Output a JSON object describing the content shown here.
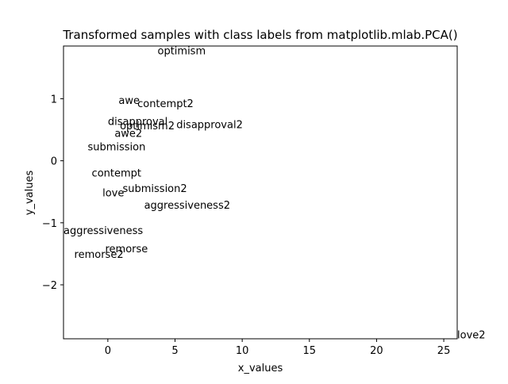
{
  "chart_data": {
    "type": "scatter",
    "title": "Transformed samples with class labels from matplotlib.mlab.PCA()",
    "xlabel": "x_values",
    "ylabel": "y_values",
    "xlim": [
      -3.3,
      26.0
    ],
    "ylim": [
      -2.87,
      1.85
    ],
    "xticks": [
      0,
      5,
      10,
      15,
      20,
      25
    ],
    "yticks": [
      -2,
      -1,
      0,
      1
    ],
    "grid": false,
    "legend": "none",
    "points": [
      {
        "label": "optimism",
        "x": 3.7,
        "y": 1.78
      },
      {
        "label": "awe",
        "x": 0.8,
        "y": 0.98
      },
      {
        "label": "contempt2",
        "x": 2.2,
        "y": 0.93
      },
      {
        "label": "disapproval",
        "x": 0.0,
        "y": 0.64
      },
      {
        "label": "optimism2",
        "x": 0.9,
        "y": 0.57
      },
      {
        "label": "disapproval2",
        "x": 5.1,
        "y": 0.59
      },
      {
        "label": "awe2",
        "x": 0.5,
        "y": 0.45
      },
      {
        "label": "submission",
        "x": -1.5,
        "y": 0.23
      },
      {
        "label": "contempt",
        "x": -1.2,
        "y": -0.19
      },
      {
        "label": "submission2",
        "x": 1.1,
        "y": -0.44
      },
      {
        "label": "love",
        "x": -0.4,
        "y": -0.51
      },
      {
        "label": "aggressiveness2",
        "x": 2.7,
        "y": -0.71
      },
      {
        "label": "aggressiveness",
        "x": -3.3,
        "y": -1.12
      },
      {
        "label": "remorse",
        "x": -0.2,
        "y": -1.41
      },
      {
        "label": "remorse2",
        "x": -2.5,
        "y": -1.5
      },
      {
        "label": "love2",
        "x": 26.0,
        "y": -2.8
      }
    ]
  }
}
